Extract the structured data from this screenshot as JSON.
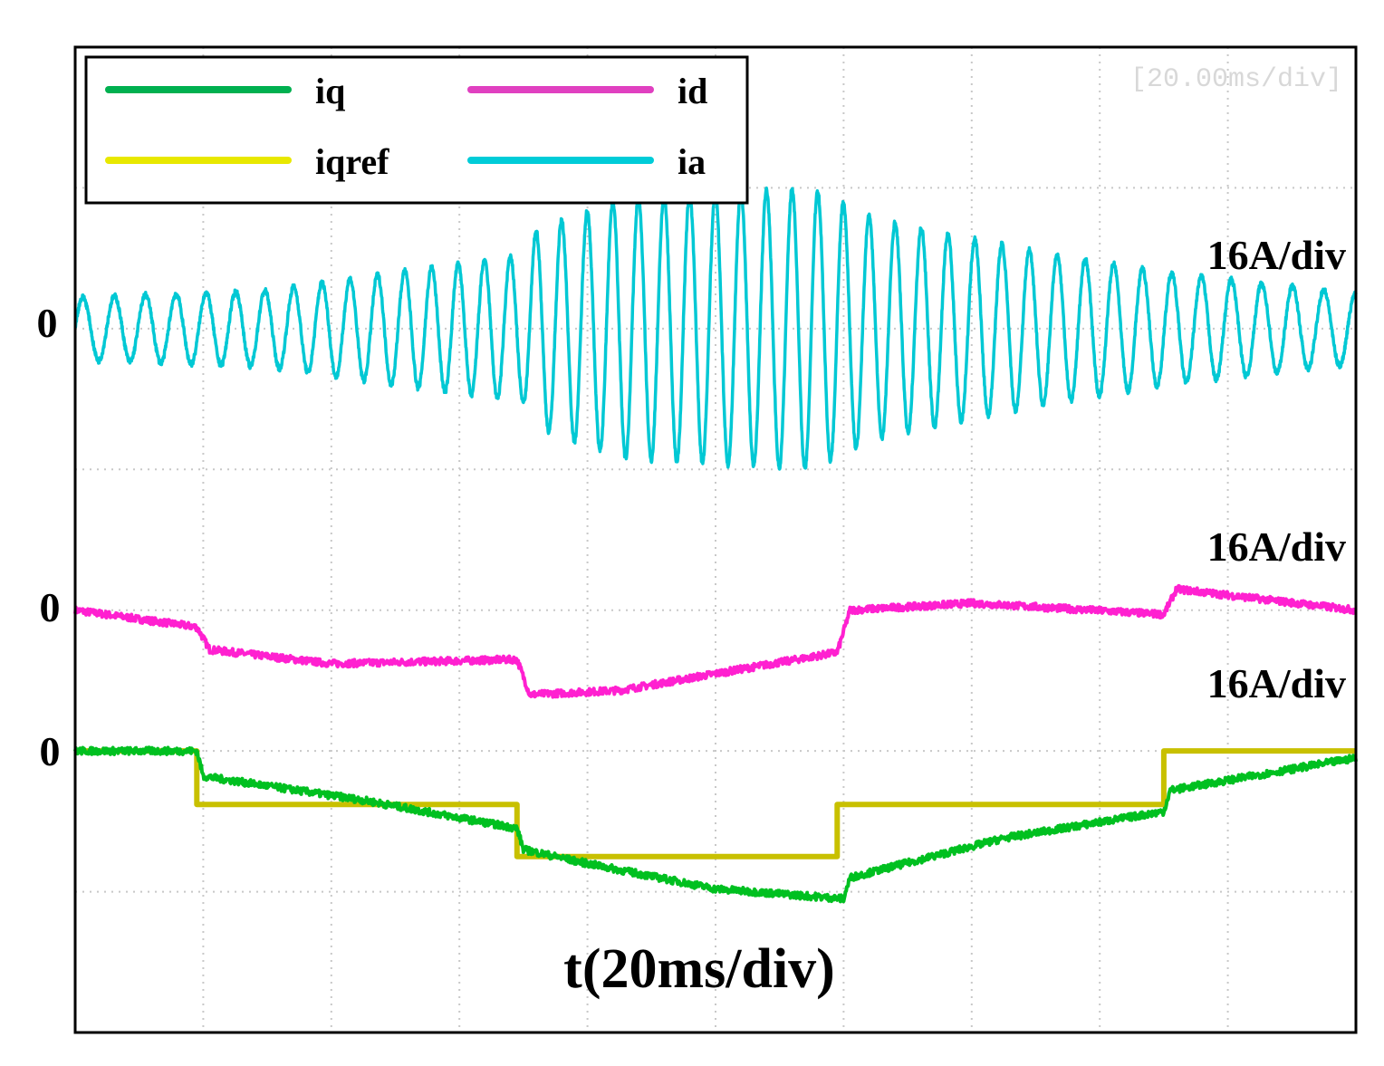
{
  "chart_data": {
    "type": "line",
    "title": "",
    "xlabel": "t(20ms/div)",
    "time_div_label": "[20.00ms/div]",
    "x_range_ms": [
      0,
      200
    ],
    "x_divisions": 10,
    "y_divisions": 7,
    "grid": true,
    "legend_position": "top-left",
    "legend": [
      {
        "key": "iq",
        "label": "iq",
        "color": "#00b050"
      },
      {
        "key": "id",
        "label": "id",
        "color": "#e040c0"
      },
      {
        "key": "iqref",
        "label": "iqref",
        "color": "#e8e800"
      },
      {
        "key": "ia",
        "label": "ia",
        "color": "#00ccd8"
      }
    ],
    "channels": [
      {
        "name": "ia",
        "scale": "16A/div",
        "zero_label": "0",
        "zero_div": 5.0
      },
      {
        "name": "id",
        "scale": "16A/div",
        "zero_label": "0",
        "zero_div": 3.0
      },
      {
        "name": "iq / iqref",
        "scale": "16A/div",
        "zero_label": "0",
        "zero_div": 2.0
      }
    ],
    "series": [
      {
        "name": "iqref",
        "color": "#c8c000",
        "unit": "div",
        "points": [
          [
            0,
            0
          ],
          [
            19,
            0
          ],
          [
            19,
            -0.38
          ],
          [
            69,
            -0.38
          ],
          [
            69,
            -0.75
          ],
          [
            119,
            -0.75
          ],
          [
            119,
            -0.38
          ],
          [
            170,
            -0.38
          ],
          [
            170,
            0
          ],
          [
            200,
            0
          ]
        ]
      },
      {
        "name": "iq",
        "color": "#00c020",
        "unit": "div",
        "points": [
          [
            0,
            0
          ],
          [
            19,
            0
          ],
          [
            20,
            -0.18
          ],
          [
            45,
            -0.35
          ],
          [
            69,
            -0.55
          ],
          [
            70,
            -0.7
          ],
          [
            80,
            -0.8
          ],
          [
            100,
            -0.98
          ],
          [
            120,
            -1.05
          ],
          [
            121,
            -0.9
          ],
          [
            145,
            -0.62
          ],
          [
            170,
            -0.43
          ],
          [
            171,
            -0.28
          ],
          [
            200,
            -0.05
          ]
        ]
      },
      {
        "name": "id",
        "color": "#ff20d0",
        "unit": "div",
        "points": [
          [
            0,
            0
          ],
          [
            19,
            -0.12
          ],
          [
            21,
            -0.28
          ],
          [
            40,
            -0.38
          ],
          [
            69,
            -0.35
          ],
          [
            71,
            -0.6
          ],
          [
            85,
            -0.57
          ],
          [
            119,
            -0.3
          ],
          [
            121,
            0
          ],
          [
            140,
            0.05
          ],
          [
            170,
            -0.03
          ],
          [
            172,
            0.15
          ],
          [
            200,
            0
          ]
        ]
      },
      {
        "name": "ia",
        "color": "#00c8d4",
        "unit": "div",
        "amplitude_envelope": [
          [
            0,
            0.22
          ],
          [
            30,
            0.27
          ],
          [
            50,
            0.4
          ],
          [
            70,
            0.52
          ],
          [
            72,
            0.7
          ],
          [
            85,
            0.92
          ],
          [
            115,
            1.0
          ],
          [
            125,
            0.78
          ],
          [
            150,
            0.55
          ],
          [
            170,
            0.4
          ],
          [
            200,
            0.25
          ]
        ],
        "frequency_hz": [
          [
            0,
            200
          ],
          [
            70,
            250
          ],
          [
            120,
            250
          ],
          [
            200,
            200
          ]
        ]
      }
    ]
  }
}
